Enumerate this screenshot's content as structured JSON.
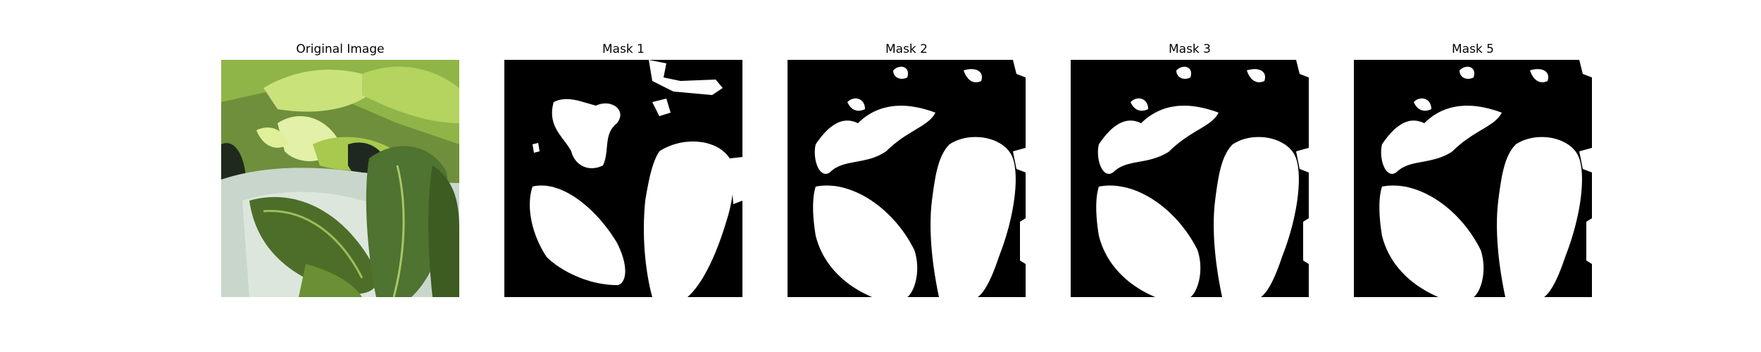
{
  "panels": [
    {
      "title": "Original Image"
    },
    {
      "title": "Mask 1"
    },
    {
      "title": "Mask 2"
    },
    {
      "title": "Mask 3"
    },
    {
      "title": "Mask 5"
    }
  ],
  "colors": {
    "background": "#ffffff",
    "mask_background": "#000000",
    "mask_foreground": "#ffffff",
    "leaf_dark": "#3f5f22",
    "leaf_light": "#b7d86a",
    "pot": "#c9d6cc"
  }
}
